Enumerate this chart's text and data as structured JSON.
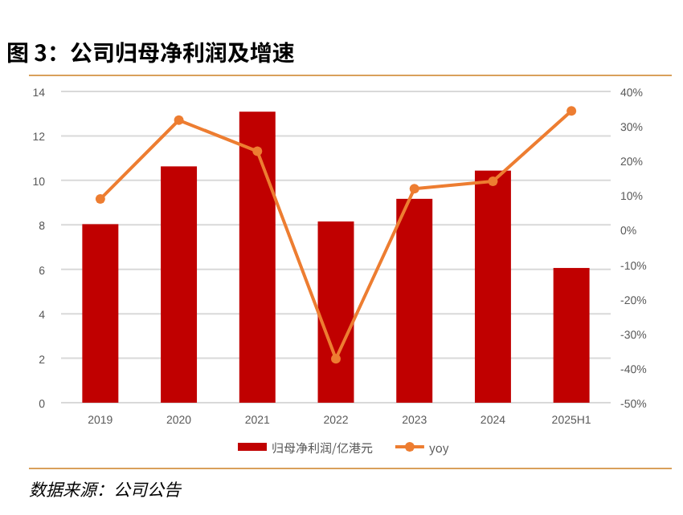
{
  "chart_data": {
    "type": "bar",
    "title": "图 3：公司归母净利润及增速",
    "categories": [
      "2019",
      "2020",
      "2021",
      "2022",
      "2023",
      "2024",
      "2025H1"
    ],
    "series": [
      {
        "name": "归母净利润/亿港元",
        "color": "#c00000",
        "values": [
          8.03,
          10.63,
          13.09,
          8.15,
          9.17,
          10.44,
          6.06
        ]
      },
      {
        "name": "yoy",
        "type": "line",
        "axis": "y2",
        "color": "#ed7d31",
        "marker": "circle",
        "values": [
          8.9,
          31.7,
          22.7,
          -37.3,
          11.9,
          14.0,
          34.4
        ]
      }
    ],
    "ylim": [
      0,
      14
    ],
    "yticks": [
      0,
      2,
      4,
      6,
      8,
      10,
      12,
      14
    ],
    "y2lim": [
      -50,
      40
    ],
    "y2ticks": [
      {
        "value": -50,
        "label": "-50%"
      },
      {
        "value": -40,
        "label": "-40%"
      },
      {
        "value": -30,
        "label": "-30%"
      },
      {
        "value": -20,
        "label": "-20%"
      },
      {
        "value": -10,
        "label": "-10%"
      },
      {
        "value": 0,
        "label": "0%"
      },
      {
        "value": 10,
        "label": "10%"
      },
      {
        "value": 20,
        "label": "20%"
      },
      {
        "value": 30,
        "label": "30%"
      },
      {
        "value": 40,
        "label": "40%"
      }
    ],
    "grid": "y",
    "legend": "bottom",
    "annotations": [
      "数据来源：公司公告"
    ]
  }
}
